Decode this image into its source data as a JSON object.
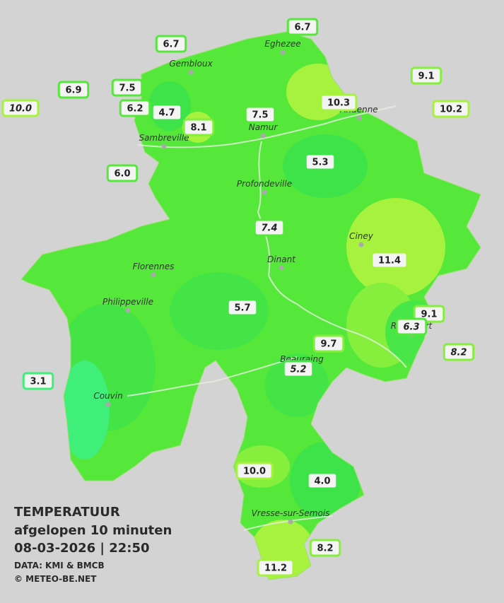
{
  "legend": {
    "title": "TEMPERATUUR",
    "subtitle": "afgelopen 10 minuten",
    "datetime": "08-03-2026  |  22:50",
    "source": "DATA: KMI & BMCB",
    "copyright": "© METEO-BE.NET"
  },
  "cities": [
    "Eghezee",
    "Gembloux",
    "Andenne",
    "Namur",
    "Sambreville",
    "Profondeville",
    "Ciney",
    "Dinant",
    "Florennes",
    "Philippeville",
    "Rochefort",
    "Beauraing",
    "Couvin",
    "Vresse-sur-Semois"
  ],
  "stations": [
    {
      "label": "6.7",
      "color": "#55e83a",
      "italic": false
    },
    {
      "label": "6.7",
      "color": "#55e83a",
      "italic": false
    },
    {
      "label": "9.1",
      "color": "#86ee3c",
      "italic": false
    },
    {
      "label": "6.9",
      "color": "#55e83a",
      "italic": false
    },
    {
      "label": "7.5",
      "color": "#55e83a",
      "italic": false
    },
    {
      "label": "10.0",
      "color": "#a6f23e",
      "italic": true
    },
    {
      "label": "6.2",
      "color": "#55e83a",
      "italic": false
    },
    {
      "label": "4.7",
      "color": "#3ee34a",
      "italic": false
    },
    {
      "label": "10.3",
      "color": "#a6f23e",
      "italic": false
    },
    {
      "label": "10.2",
      "color": "#a6f23e",
      "italic": false
    },
    {
      "label": "7.5",
      "color": "#55e83a",
      "italic": false
    },
    {
      "label": "8.1",
      "color": "#86ee3c",
      "italic": false
    },
    {
      "label": "5.3",
      "color": "#3ee34a",
      "italic": false
    },
    {
      "label": "6.0",
      "color": "#55e83a",
      "italic": false
    },
    {
      "label": "7.4",
      "color": "#55e83a",
      "italic": true
    },
    {
      "label": "11.4",
      "color": "#a6f23e",
      "italic": false
    },
    {
      "label": "5.7",
      "color": "#44e447",
      "italic": false
    },
    {
      "label": "9.1",
      "color": "#86ee3c",
      "italic": false
    },
    {
      "label": "6.3",
      "color": "#55e83a",
      "italic": true
    },
    {
      "label": "9.7",
      "color": "#86ee3c",
      "italic": false
    },
    {
      "label": "8.2",
      "color": "#86ee3c",
      "italic": true
    },
    {
      "label": "5.2",
      "color": "#44e447",
      "italic": true
    },
    {
      "label": "3.1",
      "color": "#40ef7a",
      "italic": false
    },
    {
      "label": "10.0",
      "color": "#a6f23e",
      "italic": false
    },
    {
      "label": "4.0",
      "color": "#3ee34a",
      "italic": false
    },
    {
      "label": "8.2",
      "color": "#86ee3c",
      "italic": false
    },
    {
      "label": "11.2",
      "color": "#a6f23e",
      "italic": false
    }
  ]
}
